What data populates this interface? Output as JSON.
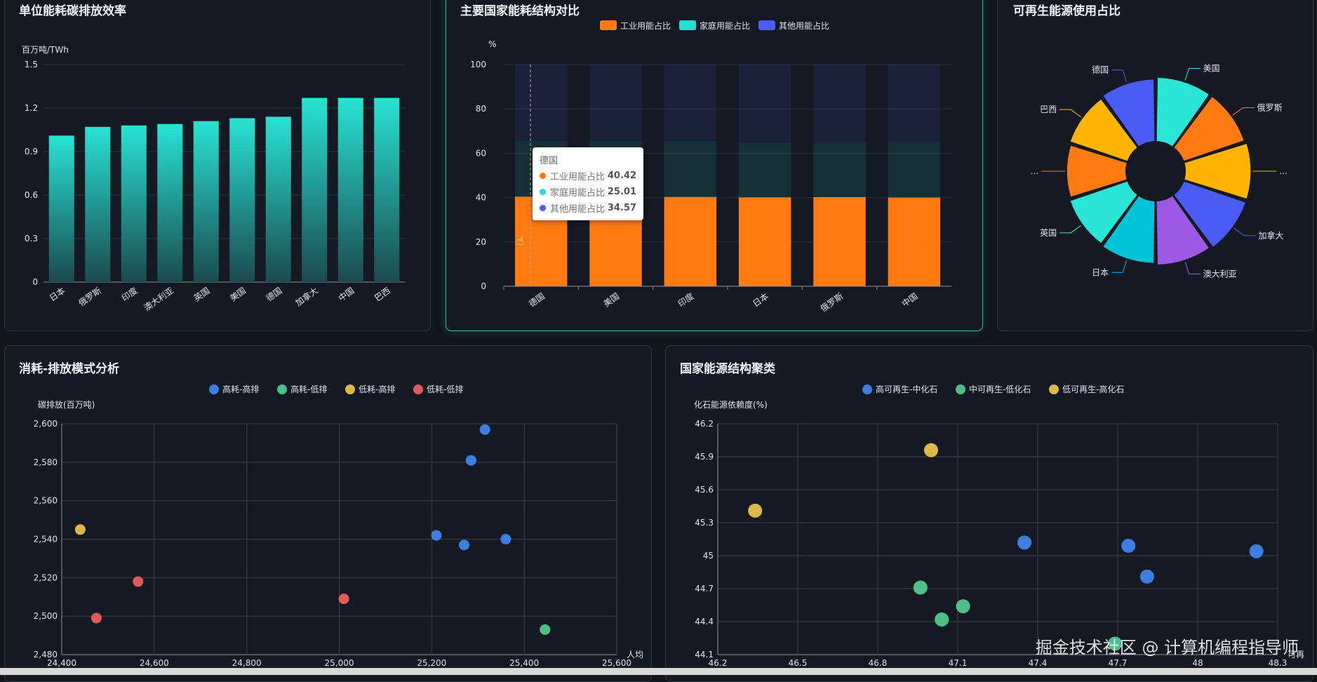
{
  "panels": {
    "p1": {
      "title": "单位能耗碳排放效率"
    },
    "p2": {
      "title": "主要国家能耗结构对比"
    },
    "p3": {
      "title": "可再生能源使用占比"
    },
    "p4": {
      "title": "消耗-排放模式分析"
    },
    "p5": {
      "title": "国家能源结构聚类"
    }
  },
  "tooltip": {
    "title": "德国",
    "rows": [
      {
        "label": "工业用能占比",
        "value": "40.42",
        "color": "#ff7a10"
      },
      {
        "label": "家庭用能占比",
        "value": "25.01",
        "color": "#22e0d0"
      },
      {
        "label": "其他用能占比",
        "value": "34.57",
        "color": "#4b5cf5"
      }
    ]
  },
  "watermark": "掘金技术社区 @ 计算机编程指导师",
  "chart_data": [
    {
      "type": "bar",
      "ylabel": "百万吨/TWh",
      "ylim": [
        0,
        1.5
      ],
      "yticks": [
        "0",
        "0.3",
        "0.6",
        "0.9",
        "1.2",
        "1.5"
      ],
      "categories": [
        "日本",
        "俄罗斯",
        "印度",
        "澳大利亚",
        "英国",
        "美国",
        "德国",
        "加拿大",
        "中国",
        "巴西"
      ],
      "values": [
        1.01,
        1.07,
        1.08,
        1.09,
        1.11,
        1.13,
        1.14,
        1.27,
        1.27,
        1.27
      ],
      "color": "#29e3d3"
    },
    {
      "type": "bar",
      "stacked": true,
      "ylabel": "%",
      "ylim": [
        0,
        100
      ],
      "yticks": [
        "0",
        "20",
        "40",
        "60",
        "80",
        "100"
      ],
      "categories": [
        "德国",
        "美国",
        "印度",
        "日本",
        "俄罗斯",
        "中国"
      ],
      "series": [
        {
          "name": "工业用能占比",
          "color": "#ff7a10",
          "values": [
            40.42,
            40.2,
            40.3,
            40.1,
            40.2,
            40.0
          ]
        },
        {
          "name": "家庭用能占比",
          "color": "#22e0d0",
          "values": [
            25.01,
            25.3,
            25.2,
            24.8,
            24.9,
            25.1
          ]
        },
        {
          "name": "其他用能占比",
          "color": "#4b5cf5",
          "values": [
            34.57,
            34.5,
            34.5,
            35.1,
            34.9,
            34.9
          ]
        }
      ]
    },
    {
      "type": "pie",
      "rose": true,
      "slices": [
        {
          "label": "美国",
          "value": 80,
          "color": "#2ae6d6"
        },
        {
          "label": "俄罗斯",
          "value": 80,
          "color": "#ff7a10"
        },
        {
          "label": "...",
          "value": 82,
          "color": "#ffb400"
        },
        {
          "label": "加拿大",
          "value": 82,
          "color": "#4b5cf5"
        },
        {
          "label": "澳大利亚",
          "value": 80,
          "color": "#9b59e6"
        },
        {
          "label": "日本",
          "value": 78,
          "color": "#00c2d8"
        },
        {
          "label": "英国",
          "value": 76,
          "color": "#2ae6d6"
        },
        {
          "label": "...",
          "value": 74,
          "color": "#ff7a10"
        },
        {
          "label": "巴西",
          "value": 76,
          "color": "#ffb400"
        },
        {
          "label": "德国",
          "value": 78,
          "color": "#4b5cf5"
        }
      ]
    },
    {
      "type": "scatter",
      "ylabel": "碳排放(百万吨)",
      "xlabel": "人均",
      "xlim": [
        24400,
        25600
      ],
      "ylim": [
        2480,
        2600
      ],
      "xticks": [
        "24,400",
        "24,600",
        "24,800",
        "25,000",
        "25,200",
        "25,400",
        "25,600"
      ],
      "yticks": [
        "2,480",
        "2,500",
        "2,520",
        "2,540",
        "2,560",
        "2,580",
        "2,600"
      ],
      "series": [
        {
          "name": "高耗-高排",
          "color": "#3e7ee0",
          "points": [
            [
              25315,
              2597
            ],
            [
              25285,
              2581
            ],
            [
              25210,
              2542
            ],
            [
              25270,
              2537
            ],
            [
              25360,
              2540
            ]
          ]
        },
        {
          "name": "高耗-低排",
          "color": "#4fbf8a",
          "points": [
            [
              25445,
              2493
            ]
          ]
        },
        {
          "name": "低耗-高排",
          "color": "#e0b84a",
          "points": [
            [
              24440,
              2545
            ]
          ]
        },
        {
          "name": "低耗-低排",
          "color": "#e05a5a",
          "points": [
            [
              24565,
              2518
            ],
            [
              24475,
              2499
            ],
            [
              25010,
              2509
            ]
          ]
        }
      ]
    },
    {
      "type": "scatter",
      "ylabel": "化石能源依赖度(%)",
      "xlabel": "可再",
      "xlim": [
        46.2,
        48.3
      ],
      "ylim": [
        44.1,
        46.2
      ],
      "xticks": [
        "46.2",
        "46.5",
        "46.8",
        "47.1",
        "47.4",
        "47.7",
        "48",
        "48.3"
      ],
      "yticks": [
        "44.1",
        "44.4",
        "44.7",
        "45",
        "45.3",
        "45.6",
        "45.9",
        "46.2"
      ],
      "series": [
        {
          "name": "高可再生-中化石",
          "color": "#3e7ee0",
          "points": [
            [
              47.35,
              45.12
            ],
            [
              47.74,
              45.09
            ],
            [
              47.81,
              44.81
            ],
            [
              48.22,
              45.04
            ]
          ]
        },
        {
          "name": "中可再生-低化石",
          "color": "#4fbf8a",
          "points": [
            [
              46.96,
              44.71
            ],
            [
              47.04,
              44.42
            ],
            [
              47.12,
              44.54
            ],
            [
              47.69,
              44.2
            ]
          ]
        },
        {
          "name": "低可再生-高化石",
          "color": "#e0b84a",
          "points": [
            [
              46.34,
              45.41
            ],
            [
              47.0,
              45.96
            ]
          ]
        }
      ]
    }
  ]
}
